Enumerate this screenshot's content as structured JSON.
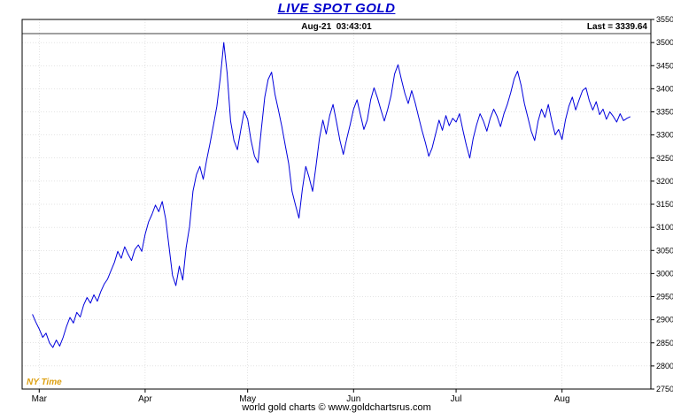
{
  "title": "LIVE SPOT GOLD",
  "header": {
    "timestamp": "Aug-21  03:43:01",
    "last": "Last = 3339.64"
  },
  "ny_time": "NY Time",
  "footer": "world gold charts © www.goldchartsrus.com",
  "colors": {
    "title": "#0000cc",
    "line": "#0000dd",
    "ny_time": "#dda012",
    "grid": "#c8c8c8",
    "axis": "#000000"
  },
  "chart_data": {
    "type": "line",
    "title": "LIVE SPOT GOLD",
    "ylabel": "",
    "xlabel": "",
    "y_axis_side": "right",
    "legend": "none",
    "grid": true,
    "ylim": [
      2750,
      3550
    ],
    "y_tick_step": 50,
    "xlim": [
      -3,
      181
    ],
    "x_unit": "days since Feb 26",
    "x_start": 0,
    "x_step": 1,
    "last": 3339.64,
    "x_ticks": [
      {
        "label": "Mar",
        "x": 2
      },
      {
        "label": "Apr",
        "x": 33
      },
      {
        "label": "May",
        "x": 63
      },
      {
        "label": "Jun",
        "x": 94
      },
      {
        "label": "Jul",
        "x": 124
      },
      {
        "label": "Aug",
        "x": 155
      }
    ],
    "values": [
      2912,
      2895,
      2880,
      2862,
      2871,
      2850,
      2840,
      2856,
      2843,
      2862,
      2886,
      2905,
      2893,
      2916,
      2906,
      2932,
      2948,
      2936,
      2954,
      2940,
      2961,
      2977,
      2988,
      3006,
      3024,
      3048,
      3033,
      3058,
      3042,
      3028,
      3052,
      3062,
      3048,
      3085,
      3112,
      3128,
      3148,
      3134,
      3156,
      3118,
      3058,
      2996,
      2974,
      3016,
      2986,
      3056,
      3102,
      3178,
      3214,
      3232,
      3204,
      3246,
      3282,
      3322,
      3362,
      3424,
      3500,
      3434,
      3330,
      3288,
      3268,
      3312,
      3352,
      3334,
      3288,
      3254,
      3240,
      3312,
      3382,
      3420,
      3436,
      3388,
      3354,
      3318,
      3278,
      3238,
      3178,
      3148,
      3120,
      3182,
      3232,
      3208,
      3178,
      3232,
      3292,
      3332,
      3302,
      3342,
      3366,
      3328,
      3288,
      3258,
      3292,
      3322,
      3356,
      3376,
      3344,
      3312,
      3332,
      3376,
      3402,
      3380,
      3354,
      3330,
      3356,
      3386,
      3432,
      3452,
      3420,
      3390,
      3368,
      3396,
      3370,
      3340,
      3310,
      3284,
      3254,
      3272,
      3302,
      3332,
      3310,
      3342,
      3320,
      3336,
      3328,
      3346,
      3310,
      3278,
      3250,
      3292,
      3322,
      3346,
      3330,
      3308,
      3336,
      3356,
      3340,
      3318,
      3346,
      3366,
      3392,
      3422,
      3438,
      3408,
      3368,
      3338,
      3308,
      3288,
      3330,
      3356,
      3338,
      3366,
      3330,
      3300,
      3312,
      3290,
      3332,
      3362,
      3382,
      3354,
      3376,
      3396,
      3402,
      3374,
      3354,
      3372,
      3344,
      3356,
      3334,
      3350,
      3340,
      3328,
      3346,
      3331,
      3336,
      3339.64
    ]
  }
}
